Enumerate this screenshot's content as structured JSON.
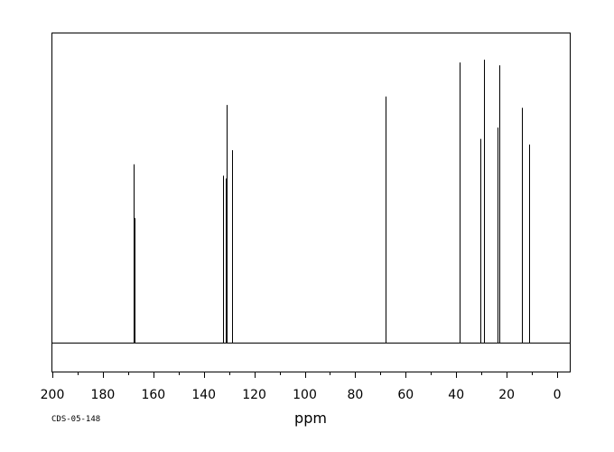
{
  "chart_data": {
    "type": "line",
    "title": "",
    "xlabel": "ppm",
    "ylabel": "",
    "xlim": [
      200,
      -5
    ],
    "ylim": [
      0,
      1
    ],
    "x_reversed": true,
    "grid": false,
    "x_ticks": [
      200,
      180,
      160,
      140,
      120,
      100,
      80,
      60,
      40,
      20,
      0
    ],
    "x_tick_labels": [
      "200",
      "180",
      "160",
      "140",
      "120",
      "100",
      "80",
      "60",
      "40",
      "20",
      "0"
    ],
    "x_minor_step": 10,
    "peaks": [
      {
        "ppm": 167.8,
        "height": 0.63
      },
      {
        "ppm": 167.5,
        "height": 0.44
      },
      {
        "ppm": 132.5,
        "height": 0.59
      },
      {
        "ppm": 131.2,
        "height": 0.58
      },
      {
        "ppm": 130.9,
        "height": 0.84
      },
      {
        "ppm": 128.8,
        "height": 0.68
      },
      {
        "ppm": 68.1,
        "height": 0.87
      },
      {
        "ppm": 38.8,
        "height": 0.99
      },
      {
        "ppm": 30.4,
        "height": 0.72
      },
      {
        "ppm": 29.0,
        "height": 1.0
      },
      {
        "ppm": 23.8,
        "height": 0.76
      },
      {
        "ppm": 23.0,
        "height": 0.98
      },
      {
        "ppm": 22.9,
        "height": 0.26
      },
      {
        "ppm": 14.1,
        "height": 0.58
      },
      {
        "ppm": 13.9,
        "height": 0.83
      },
      {
        "ppm": 11.0,
        "height": 0.7
      }
    ]
  },
  "footer": {
    "code": "CDS-05-148"
  }
}
